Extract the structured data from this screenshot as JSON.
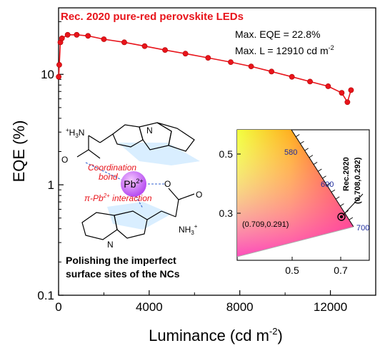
{
  "chart_data": {
    "type": "scatter",
    "title": "Rec. 2020 pure-red perovskite LEDs",
    "xlabel": "Luminance (cd m",
    "xlabel_sup": "-2",
    "xlabel_close": ")",
    "ylabel": "EQE (%)",
    "xlim": [
      0,
      14000
    ],
    "ylim": [
      0.1,
      40
    ],
    "yscale": "log",
    "x_ticks": [
      0,
      4000,
      8000,
      12000
    ],
    "x_tick_labels": [
      "0",
      "4000",
      "8000",
      "12000"
    ],
    "y_ticks": [
      0.1,
      1,
      10
    ],
    "y_tick_labels": [
      "0.1",
      "1",
      "10"
    ],
    "grid": false,
    "series": [
      {
        "color": "#e8141b",
        "points": [
          [
            5,
            9.5
          ],
          [
            30,
            12.2
          ],
          [
            80,
            19.5
          ],
          [
            150,
            21.2
          ],
          [
            400,
            22.8
          ],
          [
            800,
            22.8
          ],
          [
            1300,
            22.3
          ],
          [
            2000,
            20.8
          ],
          [
            2900,
            19.5
          ],
          [
            3800,
            18.0
          ],
          [
            4700,
            16.6
          ],
          [
            5600,
            15.4
          ],
          [
            6600,
            14.1
          ],
          [
            7600,
            12.9
          ],
          [
            8500,
            11.8
          ],
          [
            9400,
            10.6
          ],
          [
            10300,
            9.5
          ],
          [
            11100,
            8.6
          ],
          [
            11900,
            7.8
          ],
          [
            12500,
            6.8
          ],
          [
            12750,
            5.6
          ],
          [
            12910,
            7.2
          ]
        ]
      }
    ],
    "annotations": {
      "max_eqe": "Max. EQE = 22.8%",
      "max_l": "Max. L = 12910 cd m",
      "max_l_sup": "-2",
      "coordination_bond_line1": "Coordination",
      "coordination_bond_line2": "bond",
      "pi_interaction": "π-Pb",
      "pi_interaction_sup": "2+",
      "pi_interaction_tail": " interaction",
      "pb_ion": "Pb",
      "pb_ion_sup": "2+",
      "amine_left": "H",
      "amine_left_prefix": "+",
      "amine_left_sub": "3",
      "amine_left_n": "N",
      "amine_right": "NH",
      "amine_right_sub": "3",
      "amine_right_sup": "+",
      "n_atom": "N",
      "o_atom": "O",
      "caption_line1": "Polishing the imperfect",
      "caption_line2": "surface sites of the NCs"
    },
    "inset": {
      "type": "cie-chromaticity",
      "x_ticks": [
        0.5,
        0.7
      ],
      "y_ticks": [
        0.3,
        0.5
      ],
      "x_tick_labels": [
        "0.5",
        "0.7"
      ],
      "y_tick_labels": [
        "0.3",
        "0.5"
      ],
      "wavelength_labels": [
        "580",
        "600",
        "700"
      ],
      "measured_point_label": "(0.709,0.291)",
      "rec2020_label": "Rec.2020",
      "rec2020_coords": "(0.708,0.292)",
      "measured_point": [
        0.709,
        0.291
      ],
      "rec2020_point": [
        0.708,
        0.292
      ]
    }
  }
}
